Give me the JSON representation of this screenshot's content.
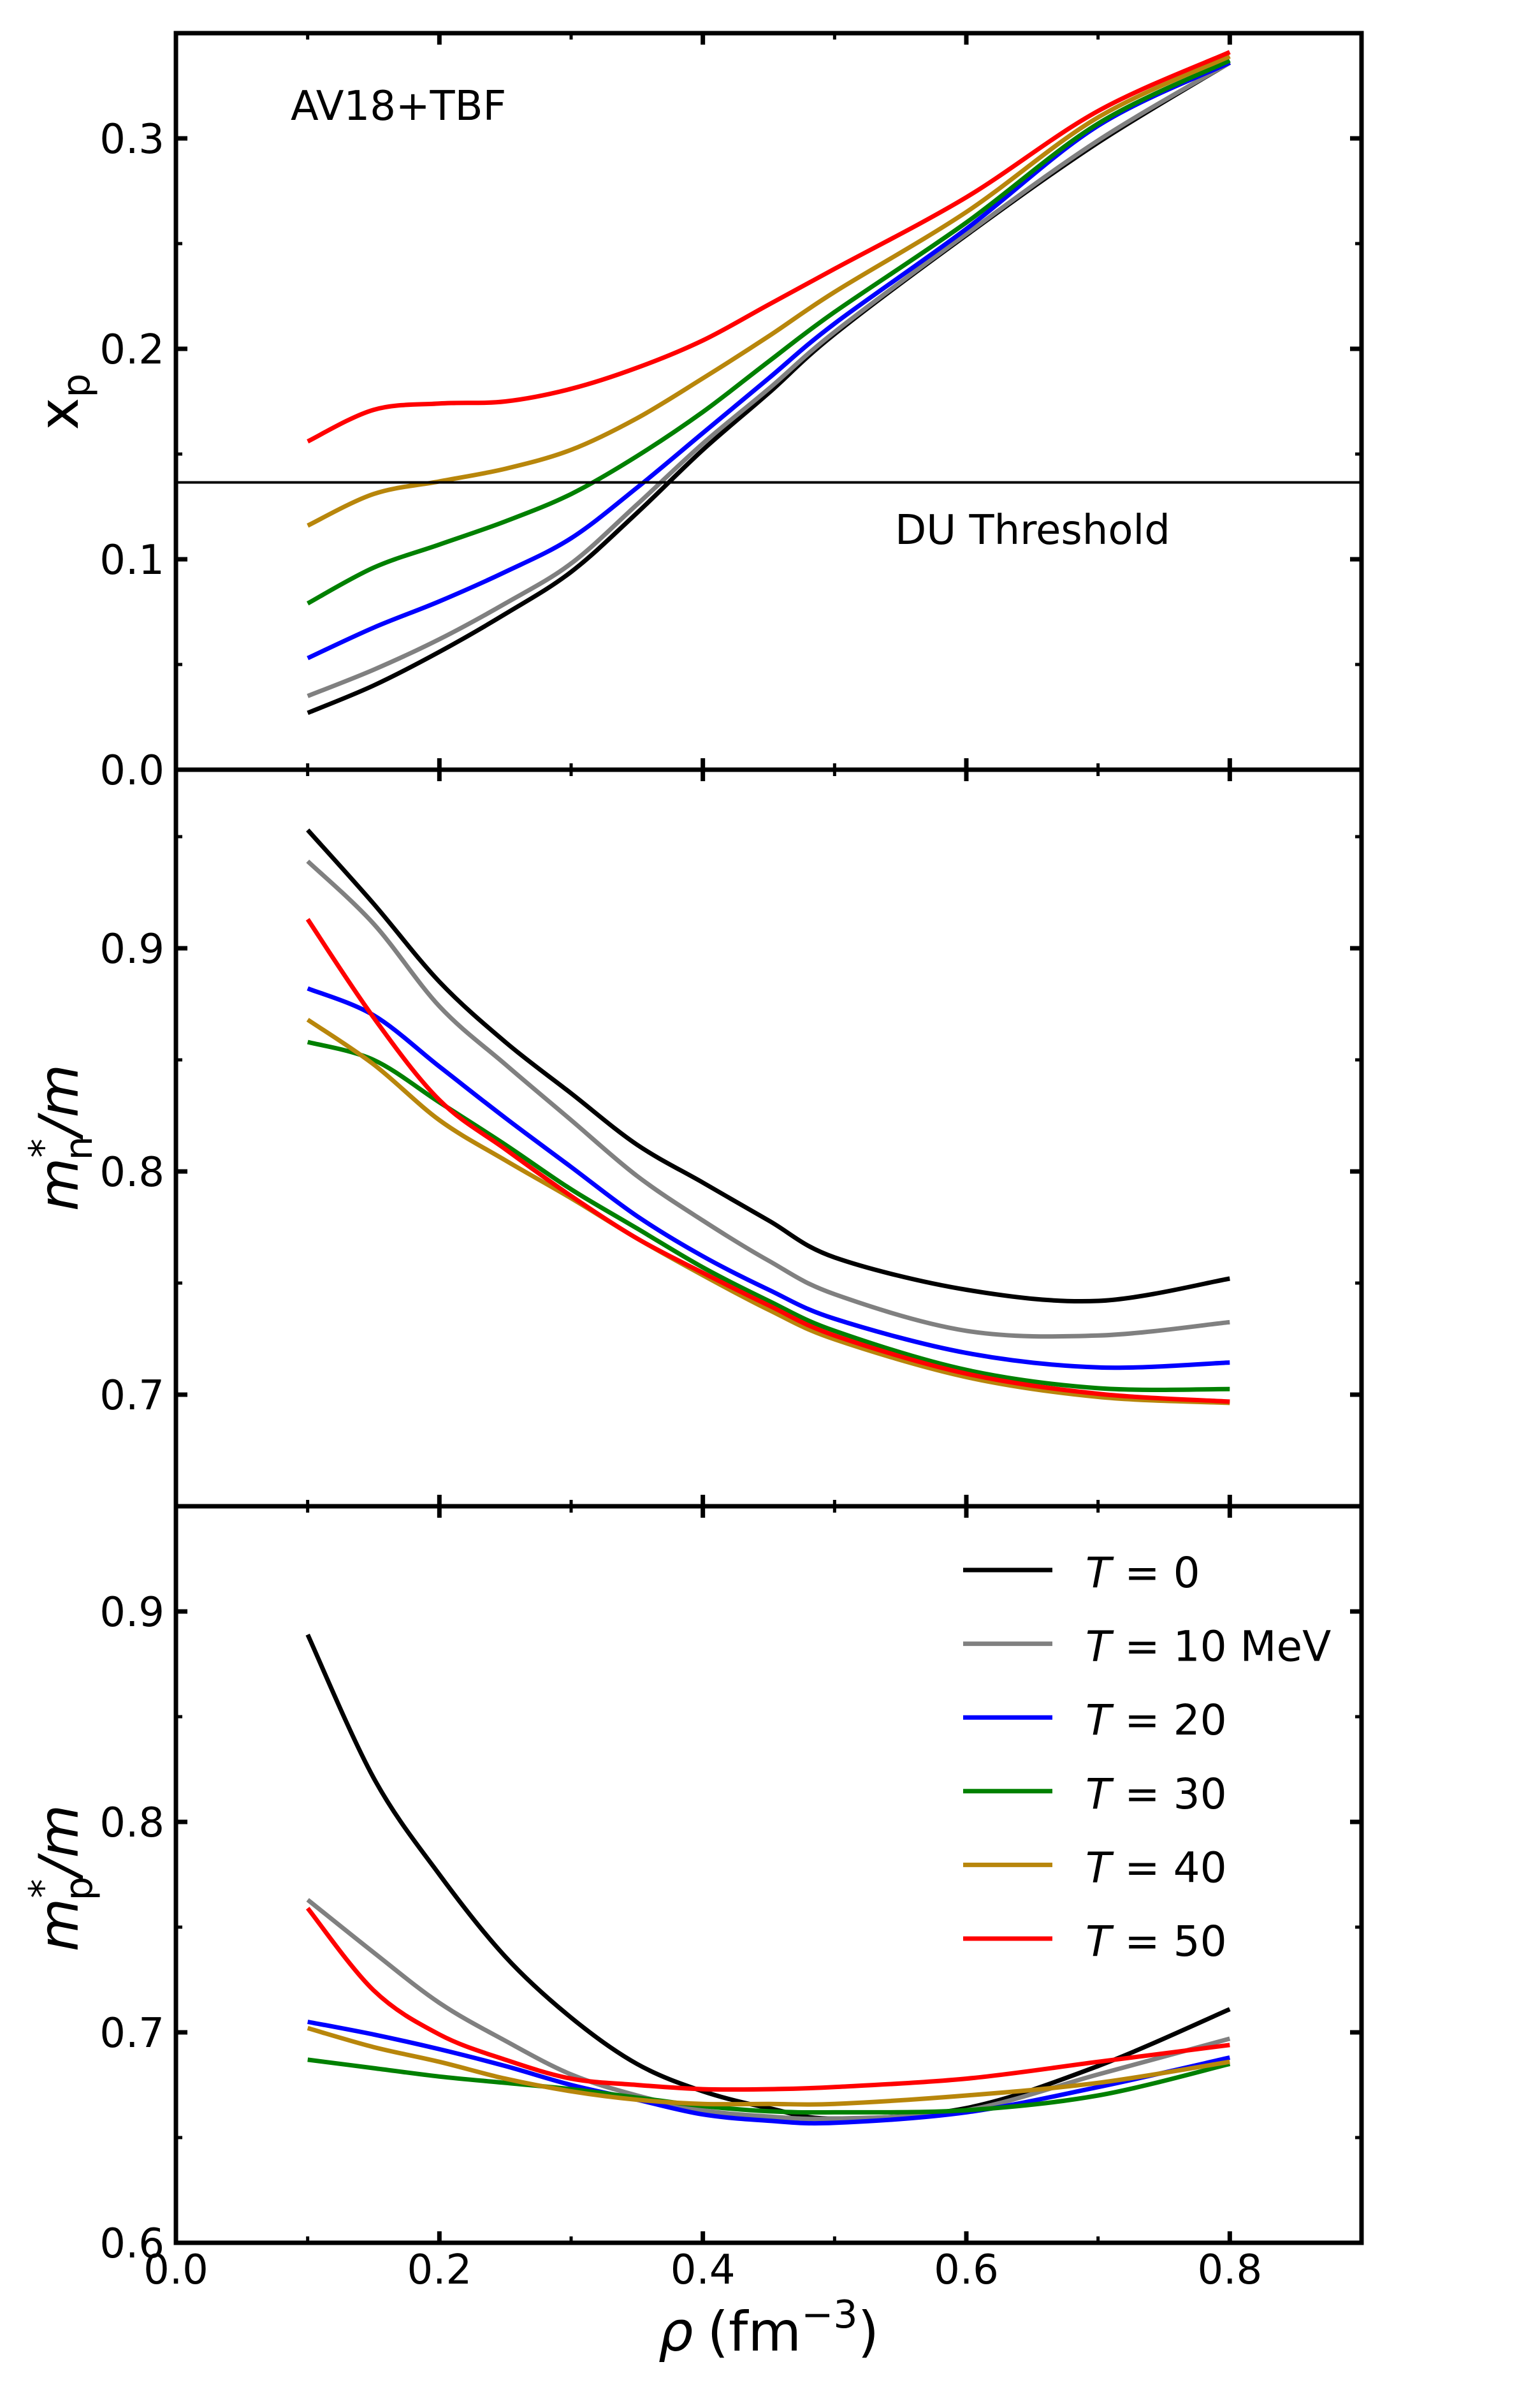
{
  "figure": {
    "annotation_model": "AV18+TBF",
    "annotation_threshold": "DU Threshold"
  },
  "chart_data": [
    {
      "type": "line",
      "panel": "top",
      "ylabel": {
        "main": "x",
        "sub": "p"
      },
      "xlabel": "",
      "xlim": [
        0.0,
        0.9
      ],
      "ylim": [
        0.0,
        0.35
      ],
      "yticks": [
        "0.0",
        "0.1",
        "0.2",
        "0.3"
      ],
      "ytick_values": [
        0.0,
        0.1,
        0.2,
        0.3
      ],
      "hline": {
        "y": 0.1365,
        "label": "DU Threshold",
        "color": "#000000"
      },
      "x": [
        0.1,
        0.15,
        0.2,
        0.25,
        0.3,
        0.35,
        0.4,
        0.45,
        0.5,
        0.6,
        0.7,
        0.8
      ],
      "series": [
        {
          "name": "T = 0",
          "color": "#000000",
          "values": [
            0.027,
            0.04,
            0.056,
            0.074,
            0.094,
            0.122,
            0.152,
            0.179,
            0.207,
            0.254,
            0.298,
            0.336
          ]
        },
        {
          "name": "T = 10 MeV",
          "color": "#808080",
          "values": [
            0.035,
            0.0475,
            0.062,
            0.079,
            0.098,
            0.126,
            0.155,
            0.181,
            0.208,
            0.2546,
            0.299,
            0.336
          ]
        },
        {
          "name": "T = 20",
          "color": "#0000ff",
          "values": [
            0.053,
            0.0675,
            0.08,
            0.094,
            0.11,
            0.134,
            0.16,
            0.186,
            0.212,
            0.257,
            0.306,
            0.336
          ]
        },
        {
          "name": "T = 30",
          "color": "#008000",
          "values": [
            0.079,
            0.096,
            0.107,
            0.118,
            0.131,
            0.149,
            0.17,
            0.194,
            0.2175,
            0.26,
            0.307,
            0.337
          ]
        },
        {
          "name": "T = 40",
          "color": "#b8860b",
          "values": [
            0.116,
            0.131,
            0.137,
            0.143,
            0.152,
            0.167,
            0.186,
            0.206,
            0.227,
            0.265,
            0.31,
            0.339
          ]
        },
        {
          "name": "T = 50",
          "color": "#ff0000",
          "values": [
            0.156,
            0.171,
            0.174,
            0.175,
            0.181,
            0.191,
            0.204,
            0.221,
            0.238,
            0.272,
            0.313,
            0.341
          ]
        }
      ]
    },
    {
      "type": "line",
      "panel": "middle",
      "ylabel": {
        "main": "m",
        "sup": "*",
        "sub": "n",
        "tail": "/m"
      },
      "xlabel": "",
      "xlim": [
        0.0,
        0.9
      ],
      "ylim": [
        0.65,
        0.98
      ],
      "yticks": [
        "0.7",
        "0.8",
        "0.9"
      ],
      "ytick_values": [
        0.7,
        0.8,
        0.9
      ],
      "x": [
        0.1,
        0.15,
        0.2,
        0.25,
        0.3,
        0.35,
        0.4,
        0.45,
        0.5,
        0.6,
        0.7,
        0.8
      ],
      "series": [
        {
          "name": "T = 0",
          "color": "#000000",
          "values": [
            0.953,
            0.92,
            0.885,
            0.858,
            0.835,
            0.812,
            0.795,
            0.778,
            0.7615,
            0.747,
            0.742,
            0.752
          ]
        },
        {
          "name": "T = 10 MeV",
          "color": "#808080",
          "values": [
            0.939,
            0.911,
            0.874,
            0.848,
            0.823,
            0.798,
            0.778,
            0.76,
            0.745,
            0.7286,
            0.7265,
            0.7325
          ]
        },
        {
          "name": "T = 20",
          "color": "#0000ff",
          "values": [
            0.882,
            0.87,
            0.847,
            0.824,
            0.802,
            0.78,
            0.762,
            0.747,
            0.734,
            0.7187,
            0.7122,
            0.7144
          ]
        },
        {
          "name": "T = 30",
          "color": "#008000",
          "values": [
            0.858,
            0.85,
            0.831,
            0.812,
            0.792,
            0.7745,
            0.757,
            0.742,
            0.7286,
            0.7111,
            0.7029,
            0.7025
          ]
        },
        {
          "name": "T = 40",
          "color": "#b8860b",
          "values": [
            0.868,
            0.848,
            0.823,
            0.805,
            0.788,
            0.77,
            0.7535,
            0.738,
            0.7248,
            0.7079,
            0.699,
            0.6963
          ]
        },
        {
          "name": "T = 50",
          "color": "#ff0000",
          "values": [
            0.913,
            0.869,
            0.832,
            0.81,
            0.789,
            0.77,
            0.7546,
            0.74,
            0.7265,
            0.7094,
            0.7004,
            0.6969
          ]
        }
      ]
    },
    {
      "type": "line",
      "panel": "bottom",
      "ylabel": {
        "main": "m",
        "sup": "*",
        "sub": "p",
        "tail": "/m"
      },
      "xlabel": {
        "main": "ρ",
        "unit": "(fm",
        "sup": "−3",
        "close": ")"
      },
      "xlim": [
        0.0,
        0.9
      ],
      "ylim": [
        0.6,
        0.95
      ],
      "xticks": [
        "0.0",
        "0.2",
        "0.4",
        "0.6",
        "0.8"
      ],
      "xtick_values": [
        0.0,
        0.2,
        0.4,
        0.6,
        0.8
      ],
      "yticks": [
        "0.6",
        "0.7",
        "0.8",
        "0.9"
      ],
      "ytick_values": [
        0.6,
        0.7,
        0.8,
        0.9
      ],
      "legend": {
        "placement": "top-right"
      },
      "x": [
        0.1,
        0.15,
        0.2,
        0.25,
        0.3,
        0.35,
        0.4,
        0.45,
        0.5,
        0.6,
        0.7,
        0.8
      ],
      "series": [
        {
          "name": "T = 0",
          "label_var": "T",
          "label_rest": " = 0",
          "color": "#000000",
          "values": [
            0.889,
            0.821,
            0.775,
            0.736,
            0.707,
            0.685,
            0.672,
            0.664,
            0.659,
            0.664,
            0.684,
            0.711
          ]
        },
        {
          "name": "T = 10 MeV",
          "label_var": "T",
          "label_rest": " = 10 MeV",
          "color": "#808080",
          "values": [
            0.763,
            0.738,
            0.714,
            0.696,
            0.68,
            0.67,
            0.663,
            0.66,
            0.659,
            0.663,
            0.68,
            0.697
          ]
        },
        {
          "name": "T = 20",
          "label_var": "T",
          "label_rest": " = 20",
          "color": "#0000ff",
          "values": [
            0.705,
            0.699,
            0.692,
            0.684,
            0.675,
            0.668,
            0.661,
            0.658,
            0.657,
            0.662,
            0.674,
            0.688
          ]
        },
        {
          "name": "T = 30",
          "label_var": "T",
          "label_rest": " = 30",
          "color": "#008000",
          "values": [
            0.687,
            0.683,
            0.679,
            0.676,
            0.673,
            0.669,
            0.665,
            0.6625,
            0.662,
            0.663,
            0.67,
            0.685
          ]
        },
        {
          "name": "T = 40",
          "label_var": "T",
          "label_rest": " = 40",
          "color": "#b8860b",
          "values": [
            0.702,
            0.693,
            0.686,
            0.678,
            0.672,
            0.668,
            0.666,
            0.666,
            0.666,
            0.67,
            0.676,
            0.686
          ]
        },
        {
          "name": "T = 50",
          "label_var": "T",
          "label_rest": " = 50",
          "color": "#ff0000",
          "values": [
            0.759,
            0.72,
            0.699,
            0.687,
            0.678,
            0.675,
            0.673,
            0.673,
            0.674,
            0.678,
            0.686,
            0.694
          ]
        }
      ]
    }
  ]
}
